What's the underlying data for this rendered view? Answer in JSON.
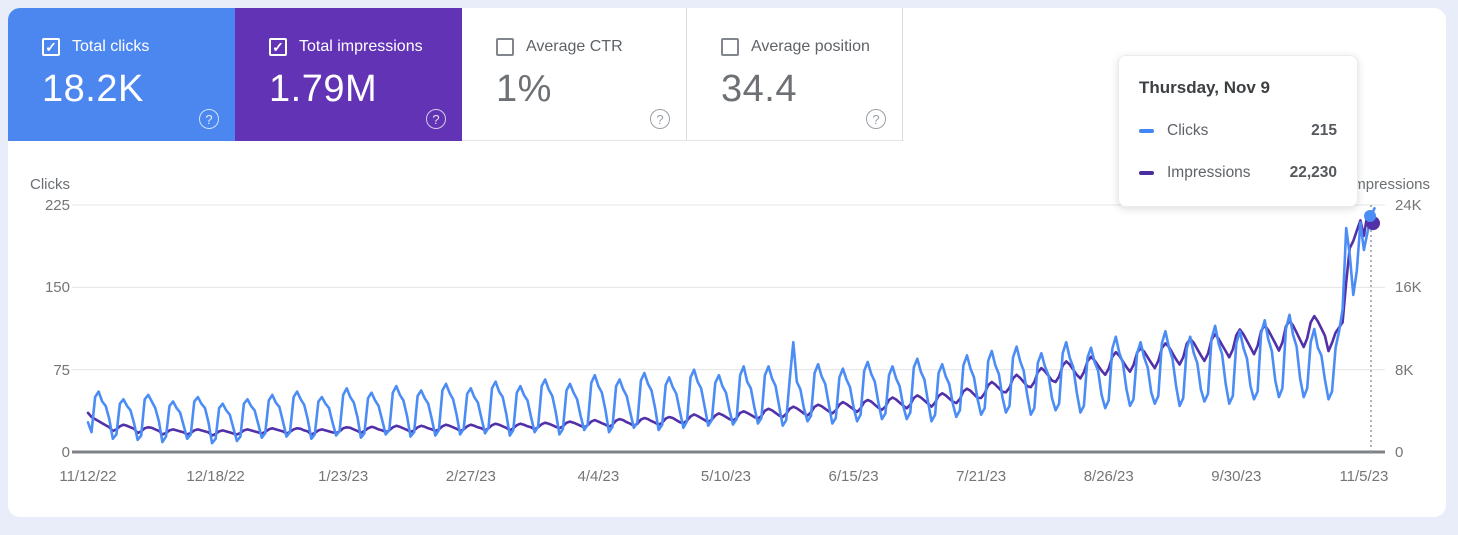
{
  "cards": [
    {
      "label": "Total clicks",
      "value": "18.2K",
      "checked": true,
      "bg": "#4c87f0",
      "text_color": "#ffffff"
    },
    {
      "label": "Total impressions",
      "value": "1.79M",
      "checked": true,
      "bg": "#6233b4",
      "text_color": "#ffffff"
    },
    {
      "label": "Average CTR",
      "value": "1%",
      "checked": false
    },
    {
      "label": "Average position",
      "value": "34.4",
      "checked": false
    }
  ],
  "help_icon_glyph": "?",
  "check_icon_glyph": "✓",
  "tooltip": {
    "title": "Thursday, Nov 9",
    "rows": [
      {
        "label": "Clicks",
        "value": "215",
        "color": "#4285f4"
      },
      {
        "label": "Impressions",
        "value": "22,230",
        "color": "#4b2da0"
      }
    ]
  },
  "chart_data": {
    "type": "line",
    "left_axis": {
      "title": "Clicks",
      "ticks": [
        "225",
        "150",
        "75",
        "0"
      ],
      "range": [
        0,
        225
      ]
    },
    "right_axis": {
      "title": "Impressions",
      "ticks": [
        "24K",
        "16K",
        "8K",
        "0"
      ],
      "range": [
        0,
        24000
      ]
    },
    "x_tick_labels": [
      "11/12/22",
      "12/18/22",
      "1/23/23",
      "2/27/23",
      "4/4/23",
      "5/10/23",
      "6/15/23",
      "7/21/23",
      "8/26/23",
      "9/30/23",
      "11/5/23"
    ],
    "grid": true,
    "hover_index": 362,
    "hover_point": {
      "date": "Thursday, Nov 9",
      "clicks": 215,
      "impressions": 22230
    },
    "series": [
      {
        "name": "Clicks",
        "axis": "left",
        "color": "#4c8df5",
        "values": [
          27,
          18,
          50,
          55,
          46,
          42,
          30,
          12,
          16,
          44,
          48,
          42,
          38,
          26,
          11,
          15,
          48,
          52,
          46,
          40,
          28,
          9,
          14,
          42,
          46,
          40,
          36,
          24,
          12,
          16,
          46,
          50,
          44,
          40,
          27,
          8,
          12,
          40,
          44,
          38,
          34,
          22,
          10,
          14,
          44,
          48,
          42,
          38,
          26,
          13,
          17,
          47,
          52,
          45,
          41,
          28,
          14,
          18,
          50,
          55,
          48,
          43,
          30,
          12,
          16,
          46,
          50,
          44,
          40,
          27,
          15,
          19,
          52,
          58,
          50,
          45,
          32,
          13,
          17,
          49,
          54,
          47,
          42,
          29,
          16,
          20,
          54,
          60,
          52,
          47,
          33,
          14,
          18,
          51,
          56,
          49,
          44,
          30,
          15,
          20,
          56,
          62,
          54,
          48,
          34,
          16,
          21,
          53,
          58,
          50,
          45,
          31,
          17,
          22,
          58,
          64,
          55,
          50,
          35,
          15,
          20,
          54,
          60,
          52,
          47,
          32,
          18,
          23,
          60,
          66,
          57,
          51,
          36,
          16,
          21,
          56,
          62,
          54,
          48,
          33,
          20,
          25,
          63,
          70,
          60,
          54,
          38,
          18,
          23,
          60,
          66,
          57,
          51,
          36,
          22,
          27,
          65,
          72,
          62,
          56,
          40,
          20,
          25,
          61,
          68,
          59,
          53,
          37,
          22,
          28,
          68,
          75,
          64,
          58,
          41,
          24,
          29,
          63,
          70,
          60,
          54,
          38,
          25,
          30,
          70,
          78,
          64,
          58,
          41,
          26,
          31,
          70,
          78,
          67,
          60,
          42,
          24,
          29,
          67,
          100,
          64,
          57,
          40,
          28,
          33,
          72,
          80,
          69,
          62,
          44,
          26,
          31,
          68,
          76,
          66,
          59,
          41,
          28,
          34,
          74,
          82,
          71,
          64,
          45,
          30,
          35,
          70,
          78,
          67,
          60,
          42,
          30,
          36,
          77,
          85,
          73,
          66,
          46,
          28,
          34,
          72,
          80,
          69,
          62,
          44,
          32,
          38,
          79,
          88,
          76,
          68,
          48,
          34,
          40,
          83,
          92,
          79,
          71,
          50,
          36,
          42,
          86,
          96,
          83,
          74,
          52,
          34,
          40,
          81,
          90,
          78,
          70,
          49,
          38,
          44,
          90,
          100,
          86,
          77,
          54,
          36,
          42,
          86,
          95,
          82,
          74,
          52,
          40,
          47,
          94,
          105,
          90,
          81,
          57,
          42,
          48,
          90,
          100,
          86,
          77,
          54,
          44,
          51,
          99,
          110,
          95,
          85,
          60,
          42,
          49,
          94,
          105,
          90,
          81,
          57,
          46,
          53,
          103,
          115,
          99,
          89,
          62,
          44,
          51,
          99,
          110,
          95,
          85,
          60,
          48,
          55,
          108,
          120,
          103,
          92,
          65,
          50,
          58,
          112,
          125,
          107,
          96,
          67,
          50,
          58,
          100,
          112,
          95,
          88,
          66,
          48,
          55,
          95,
          110,
          130,
          204,
          180,
          143,
          165,
          209,
          184,
          200,
          215,
          222
        ]
      },
      {
        "name": "Impressions",
        "axis": "right",
        "color": "#5230a8",
        "values": [
          3800,
          3400,
          3200,
          3000,
          2800,
          2600,
          2400,
          2050,
          2200,
          2500,
          2650,
          2550,
          2400,
          2250,
          1850,
          2000,
          2300,
          2400,
          2350,
          2200,
          2050,
          1700,
          1850,
          2100,
          2200,
          2100,
          2000,
          1900,
          1700,
          1850,
          2100,
          2200,
          2100,
          2000,
          1900,
          1600,
          1750,
          2000,
          2100,
          2000,
          1900,
          1800,
          1700,
          1850,
          2100,
          2200,
          2100,
          2000,
          1900,
          1800,
          1950,
          2200,
          2300,
          2200,
          2100,
          2000,
          1800,
          1950,
          2200,
          2300,
          2250,
          2100,
          2000,
          1700,
          1850,
          2100,
          2200,
          2100,
          2000,
          1900,
          1850,
          2000,
          2300,
          2400,
          2350,
          2200,
          2050,
          1850,
          2050,
          2300,
          2450,
          2350,
          2200,
          2100,
          1950,
          2100,
          2400,
          2550,
          2450,
          2300,
          2150,
          1950,
          2100,
          2400,
          2550,
          2450,
          2300,
          2200,
          2050,
          2200,
          2500,
          2650,
          2550,
          2400,
          2250,
          2050,
          2200,
          2500,
          2650,
          2550,
          2400,
          2300,
          2100,
          2300,
          2600,
          2750,
          2650,
          2500,
          2350,
          2100,
          2300,
          2600,
          2750,
          2650,
          2500,
          2400,
          2200,
          2400,
          2700,
          2850,
          2750,
          2600,
          2450,
          2300,
          2500,
          2850,
          2950,
          2850,
          2700,
          2550,
          2400,
          2600,
          2950,
          3100,
          2950,
          2800,
          2650,
          2450,
          2650,
          3050,
          3200,
          3100,
          2900,
          2750,
          2550,
          2750,
          3150,
          3300,
          3200,
          3000,
          2850,
          2650,
          2850,
          3250,
          3400,
          3300,
          3100,
          2900,
          2800,
          3050,
          3450,
          3650,
          3500,
          3300,
          3100,
          2900,
          3150,
          3550,
          3750,
          3600,
          3400,
          3200,
          3050,
          3300,
          3800,
          3950,
          3800,
          3600,
          3400,
          3250,
          3500,
          4000,
          4200,
          4050,
          3800,
          3550,
          3400,
          3700,
          4200,
          4400,
          4250,
          4000,
          3750,
          3550,
          3850,
          4400,
          4600,
          4450,
          4200,
          3950,
          3750,
          4050,
          4600,
          4850,
          4650,
          4400,
          4150,
          3900,
          4250,
          4850,
          5050,
          4900,
          4600,
          4300,
          4100,
          4400,
          5050,
          5300,
          5100,
          4800,
          4500,
          4250,
          4600,
          5250,
          5500,
          5300,
          5000,
          4700,
          4400,
          4800,
          5450,
          5700,
          5500,
          5200,
          4900,
          4750,
          5150,
          5900,
          6150,
          5950,
          5600,
          5250,
          5250,
          5700,
          6500,
          6800,
          6550,
          6200,
          5850,
          5800,
          6250,
          7150,
          7500,
          7200,
          6800,
          6400,
          6300,
          6800,
          7750,
          8150,
          7850,
          7400,
          6950,
          6800,
          7350,
          8400,
          8800,
          8500,
          8000,
          7500,
          7150,
          7750,
          8800,
          9250,
          8900,
          8400,
          7900,
          7500,
          8100,
          9250,
          9700,
          9350,
          8800,
          8250,
          7800,
          8450,
          9650,
          10100,
          9750,
          9200,
          8650,
          8150,
          8850,
          10100,
          10550,
          10200,
          9600,
          9000,
          8500,
          9200,
          10500,
          11000,
          10600,
          10000,
          9400,
          8850,
          9550,
          10900,
          11450,
          11000,
          10400,
          9800,
          9200,
          9950,
          11350,
          11900,
          11450,
          10800,
          10150,
          9500,
          10300,
          11750,
          12300,
          11850,
          11200,
          10550,
          9850,
          10650,
          12200,
          12750,
          12300,
          11600,
          10900,
          10200,
          11050,
          12600,
          13200,
          12700,
          12000,
          11300,
          9800,
          10600,
          11600,
          12100,
          12600,
          16500,
          19800,
          20500,
          21500,
          22500,
          21000,
          23200,
          22230,
          22600
        ]
      }
    ]
  },
  "style": {
    "grid_color": "#e4e4e4",
    "baseline_color": "#7e8287",
    "hover_line_color": "#9aa0a6",
    "page_bg": "#e9edfa"
  }
}
